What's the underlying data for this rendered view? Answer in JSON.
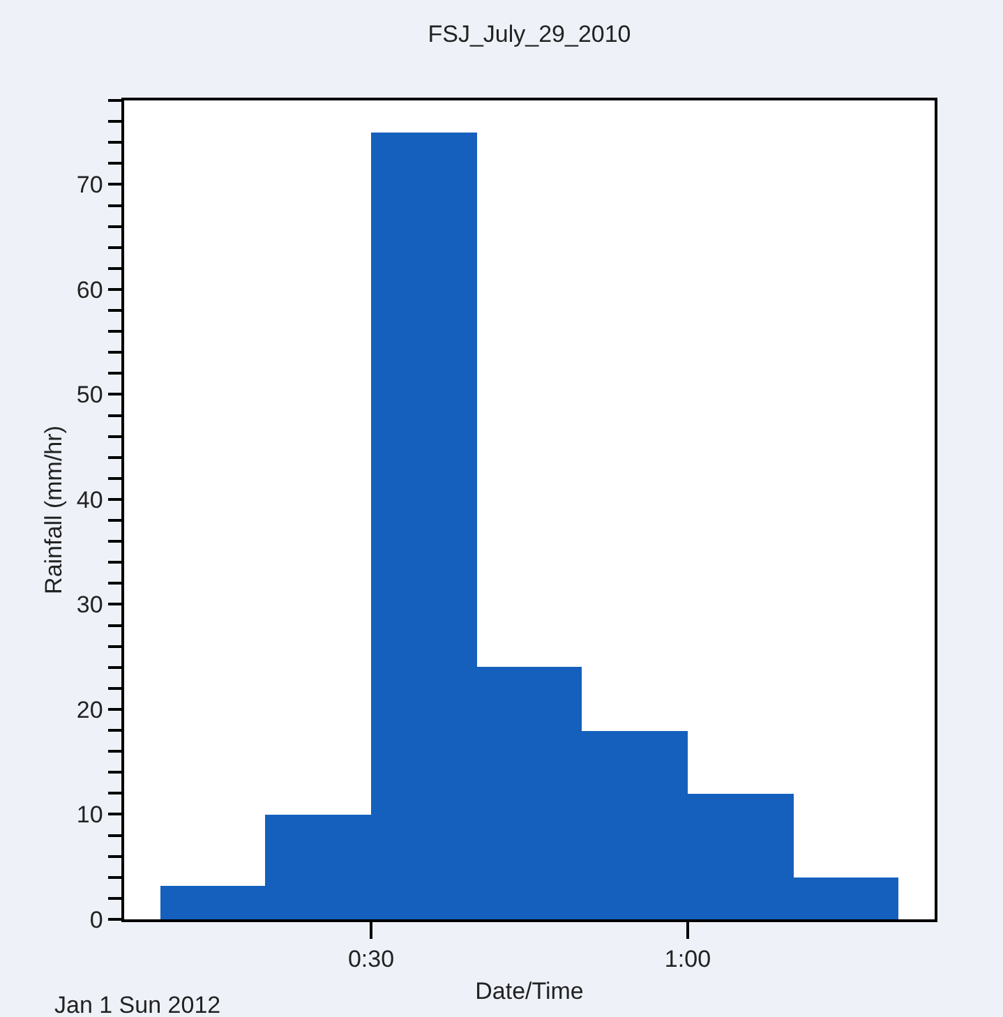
{
  "chart_data": {
    "type": "histogram",
    "title": "FSJ_July_29_2010",
    "xlabel": "Date/Time",
    "ylabel": "Rainfall (mm/hr)",
    "annotations": [
      "Jan 1 Sun 2012"
    ],
    "bins": [
      0.1667,
      0.3333,
      0.5,
      0.6667,
      0.8333,
      1.0,
      1.1667,
      1.3333
    ],
    "values": [
      3.2,
      10,
      75,
      24,
      18,
      12,
      4
    ],
    "color": "#1560bd",
    "xlim": [
      0.11,
      1.39
    ],
    "xticks": [
      {
        "value": 0.5,
        "label": "0:30"
      },
      {
        "value": 1.0,
        "label": "1:00"
      }
    ],
    "ylim": [
      0,
      78
    ],
    "yticks": [
      0,
      10,
      20,
      30,
      40,
      50,
      60,
      70
    ]
  }
}
